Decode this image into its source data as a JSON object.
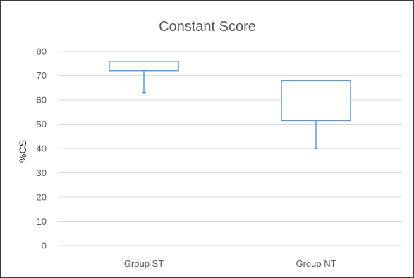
{
  "chart_data": {
    "type": "box",
    "title": "Constant Score",
    "xlabel": "",
    "ylabel": "%CS",
    "ylim": [
      0,
      80
    ],
    "yticks": [
      "0",
      "10",
      "20",
      "30",
      "40",
      "50",
      "60",
      "70",
      "80"
    ],
    "categories": [
      "Group ST",
      "Group NT"
    ],
    "boxes": [
      {
        "category": "Group ST",
        "min": 63,
        "q1": 72,
        "median": 72,
        "q3": 76,
        "max": 76
      },
      {
        "category": "Group NT",
        "min": 40,
        "q1": 51.5,
        "median": 51.5,
        "q3": 68,
        "max": 68
      }
    ],
    "grid": true,
    "legend": "none",
    "colors": {
      "box": "#5b9bd5",
      "grid": "#d9d9d9",
      "text": "#595959"
    }
  }
}
